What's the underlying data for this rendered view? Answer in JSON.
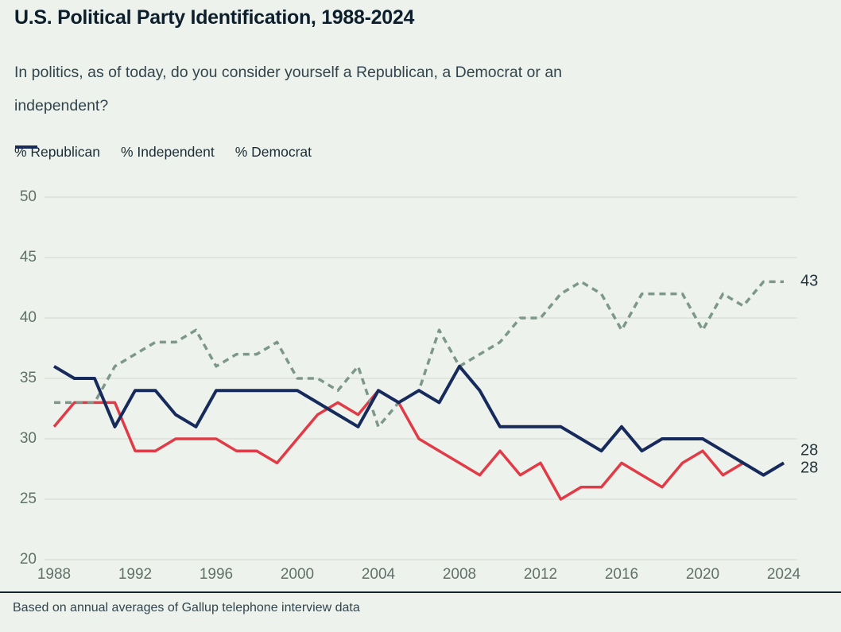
{
  "header": {
    "title": "U.S. Political Party Identification, 1988-2024",
    "subtitle_line1": "In politics, as of today, do you consider yourself a Republican, a Democrat or an",
    "subtitle_line2": "independent?"
  },
  "legend": [
    {
      "label": "% Republican",
      "series": "republican",
      "style": "solid"
    },
    {
      "label": "% Independent",
      "series": "independent",
      "style": "dashed"
    },
    {
      "label": "% Democrat",
      "series": "democrat",
      "style": "solid"
    }
  ],
  "footer": {
    "source_note": "Based on annual averages of Gallup telephone interview data"
  },
  "colors": {
    "republican": "#e23b48",
    "independent": "#7e978c",
    "democrat": "#172a5c",
    "background": "#edf3ec",
    "gridline": "#d8dfd6",
    "axis_text": "#5f716a",
    "title_text": "#0d1f2d",
    "body_text": "#32444d",
    "legend_text": "#1d2d36",
    "end_label_text": "#23333b",
    "divider": "#16262e"
  },
  "chart_data": {
    "type": "line",
    "title": "U.S. Political Party Identification, 1988-2024",
    "xlabel": "",
    "ylabel": "",
    "x": [
      1988,
      1989,
      1990,
      1991,
      1992,
      1993,
      1994,
      1995,
      1996,
      1997,
      1998,
      1999,
      2000,
      2001,
      2002,
      2003,
      2004,
      2005,
      2006,
      2007,
      2008,
      2009,
      2010,
      2011,
      2012,
      2013,
      2014,
      2015,
      2016,
      2017,
      2018,
      2019,
      2020,
      2021,
      2022,
      2023,
      2024
    ],
    "series": [
      {
        "name": "% Republican",
        "key": "republican",
        "dashed": false,
        "values": [
          31,
          33,
          33,
          33,
          29,
          29,
          30,
          30,
          30,
          29,
          29,
          28,
          30,
          32,
          33,
          32,
          34,
          33,
          30,
          29,
          28,
          27,
          29,
          27,
          28,
          25,
          26,
          26,
          28,
          27,
          26,
          28,
          29,
          27,
          28,
          27,
          28
        ]
      },
      {
        "name": "% Independent",
        "key": "independent",
        "dashed": true,
        "values": [
          33,
          33,
          33,
          36,
          37,
          38,
          38,
          39,
          36,
          37,
          37,
          38,
          35,
          35,
          34,
          36,
          31,
          33,
          34,
          39,
          36,
          37,
          38,
          40,
          40,
          42,
          43,
          42,
          39,
          42,
          42,
          42,
          39,
          42,
          41,
          43,
          43
        ]
      },
      {
        "name": "% Democrat",
        "key": "democrat",
        "dashed": false,
        "values": [
          36,
          35,
          35,
          31,
          34,
          34,
          32,
          31,
          34,
          34,
          34,
          34,
          34,
          33,
          32,
          31,
          34,
          33,
          34,
          33,
          36,
          34,
          31,
          31,
          31,
          31,
          30,
          29,
          31,
          29,
          30,
          30,
          30,
          29,
          28,
          27,
          28
        ]
      }
    ],
    "x_ticks": [
      1988,
      1992,
      1996,
      2000,
      2004,
      2008,
      2012,
      2016,
      2020,
      2024
    ],
    "y_ticks": [
      20,
      25,
      30,
      35,
      40,
      45,
      50
    ],
    "xlim": [
      1988,
      2024
    ],
    "ylim": [
      20,
      50
    ],
    "grid": true,
    "legend_position": "top-left",
    "end_labels": [
      {
        "text": "43",
        "series": "independent",
        "value": 43
      },
      {
        "text": "28",
        "series": "republican",
        "value": 28
      },
      {
        "text": "28",
        "series": "democrat",
        "value": 28
      }
    ]
  }
}
